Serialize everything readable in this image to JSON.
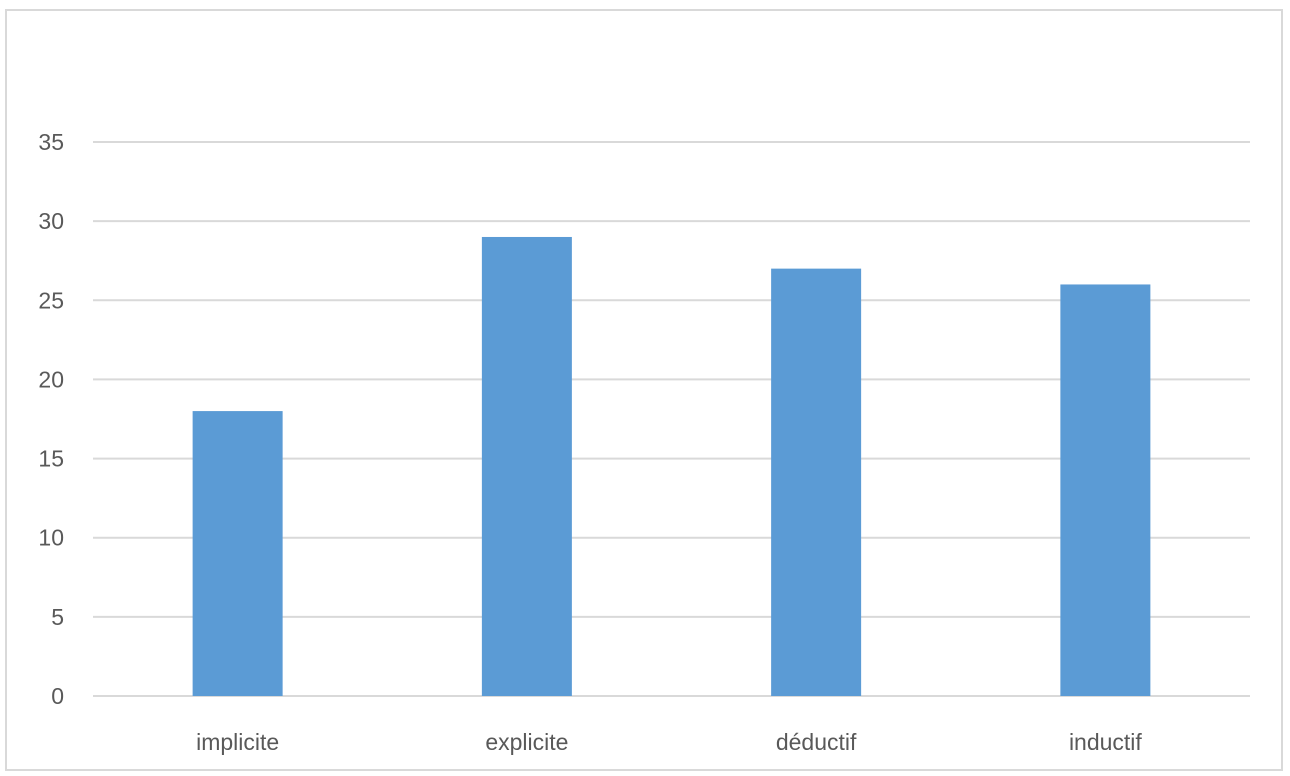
{
  "chart_data": {
    "type": "bar",
    "title": "",
    "xlabel": "",
    "ylabel": "",
    "categories": [
      "implicite",
      "explicite",
      "déductif",
      "inductif"
    ],
    "values": [
      18,
      29,
      27,
      26
    ],
    "ylim": [
      0,
      35
    ],
    "yticks": [
      0,
      5,
      10,
      15,
      20,
      25,
      30,
      35
    ],
    "grid": true,
    "legend": "none",
    "colors": {
      "bar": "#5b9bd5",
      "gridline": "#d9d9d9",
      "axis": "#d9d9d9",
      "text": "#595959",
      "border": "#d9d9d9"
    }
  }
}
